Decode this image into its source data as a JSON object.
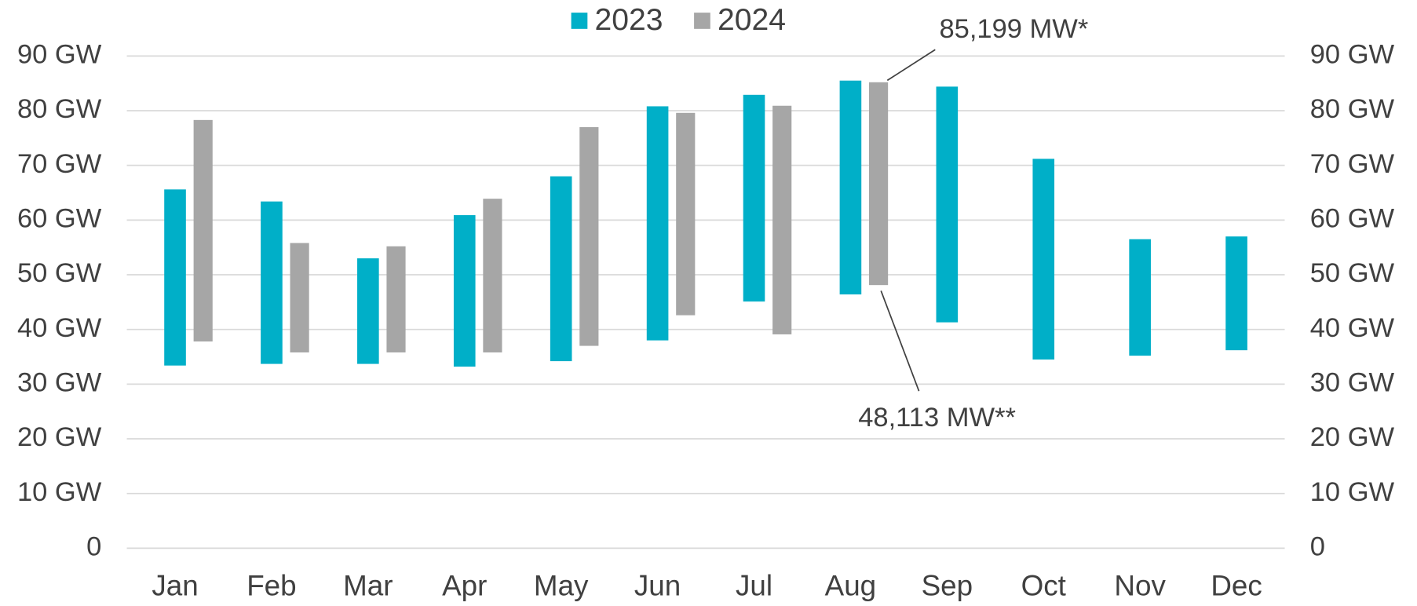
{
  "chart_data": {
    "type": "floating-bar",
    "categories": [
      "Jan",
      "Feb",
      "Mar",
      "Apr",
      "May",
      "Jun",
      "Jul",
      "Aug",
      "Sep",
      "Oct",
      "Nov",
      "Dec"
    ],
    "series": [
      {
        "name": "2023",
        "color": "#00afc8",
        "values": [
          [
            33.4,
            65.6
          ],
          [
            33.7,
            63.4
          ],
          [
            33.7,
            53.0
          ],
          [
            33.2,
            60.9
          ],
          [
            34.2,
            68.0
          ],
          [
            38.0,
            80.8
          ],
          [
            45.1,
            82.9
          ],
          [
            46.4,
            85.5
          ],
          [
            41.3,
            84.4
          ],
          [
            34.5,
            71.2
          ],
          [
            35.2,
            56.5
          ],
          [
            36.2,
            57.0
          ]
        ]
      },
      {
        "name": "2024",
        "color": "#a6a6a6",
        "values": [
          [
            37.8,
            78.3
          ],
          [
            35.8,
            55.8
          ],
          [
            35.8,
            55.2
          ],
          [
            35.8,
            63.9
          ],
          [
            37.0,
            77.0
          ],
          [
            42.6,
            79.6
          ],
          [
            39.1,
            80.9
          ],
          [
            48.113,
            85.199
          ],
          null,
          null,
          null,
          null
        ]
      }
    ],
    "ylim": [
      0,
      90
    ],
    "yticks": [
      0,
      {
        "value": 10,
        "label": "10 GW"
      },
      {
        "value": 20,
        "label": "20 GW"
      },
      {
        "value": 30,
        "label": "30 GW"
      },
      {
        "value": 40,
        "label": "40 GW"
      },
      {
        "value": 50,
        "label": "50 GW"
      },
      {
        "value": 60,
        "label": "60 GW"
      },
      {
        "value": 70,
        "label": "70 GW"
      },
      {
        "value": 80,
        "label": "80 GW"
      },
      {
        "value": 90,
        "label": "90 GW"
      }
    ],
    "y2lim": [
      0,
      90
    ],
    "y2ticks": [
      0,
      {
        "value": 10,
        "label": "10 GW"
      },
      {
        "value": 20,
        "label": "20 GW"
      },
      {
        "value": 30,
        "label": "30 GW"
      },
      {
        "value": 40,
        "label": "40 GW"
      },
      {
        "value": 50,
        "label": "50 GW"
      },
      {
        "value": 60,
        "label": "60 GW"
      },
      {
        "value": 70,
        "label": "70 GW"
      },
      {
        "value": 80,
        "label": "80 GW"
      },
      {
        "value": 90,
        "label": "90 GW"
      }
    ],
    "grid": true,
    "legend": "top",
    "annotations": [
      "85,199 MW*",
      "48,113 MW**"
    ]
  }
}
